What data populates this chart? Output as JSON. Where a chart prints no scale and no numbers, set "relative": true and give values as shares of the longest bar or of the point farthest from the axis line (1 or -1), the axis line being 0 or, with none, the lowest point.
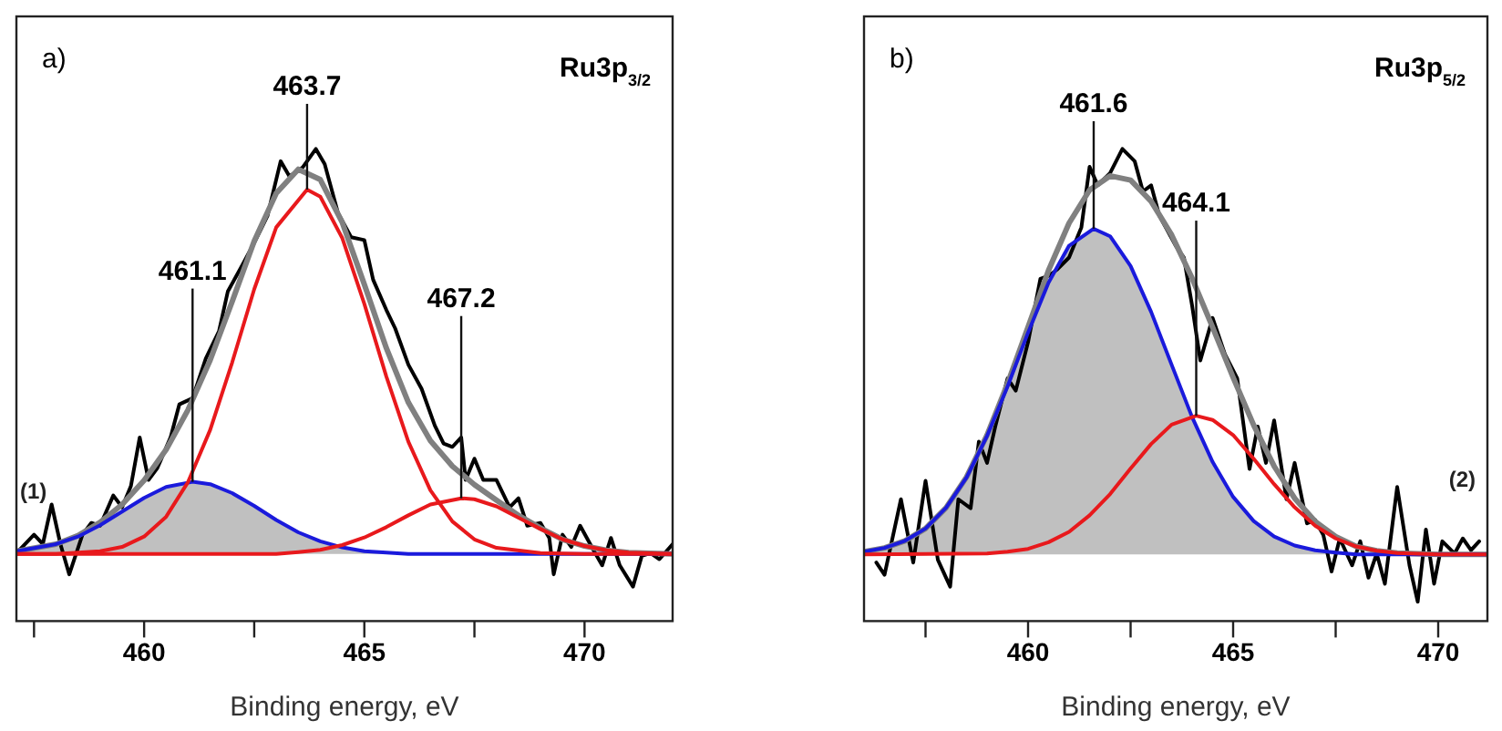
{
  "chart_data": [
    {
      "type": "line",
      "title": "Ru3p$_{3/2}$",
      "xlabel": "Binding energy, eV",
      "relative": true,
      "xlim": [
        457.1,
        472.0
      ],
      "xticks": [
        {
          "value": 457.5,
          "label": null
        },
        460,
        {
          "value": 462.5,
          "label": null
        },
        465,
        {
          "value": 467.5,
          "label": null
        },
        470
      ],
      "annotations": [
        "a)",
        {
          "text": "461.1",
          "x": 461.1,
          "y": 0.295
        },
        {
          "text": "463.7",
          "x": 463.7,
          "y": 0.914
        },
        {
          "text": "467.2",
          "x": 467.2,
          "y": 0.26
        }
      ],
      "series": [
        {
          "type": "area",
          "color": "#c0c0c0",
          "x": [
            457.1,
            458,
            458.5,
            459,
            459.5,
            460,
            460.5,
            461.1,
            461.5,
            462,
            462.5,
            463,
            463.5,
            464,
            464.5,
            465,
            466
          ],
          "values": [
            0.148,
            0.163,
            0.179,
            0.203,
            0.232,
            0.261,
            0.284,
            0.295,
            0.29,
            0.271,
            0.244,
            0.214,
            0.188,
            0.169,
            0.156,
            0.148,
            0.142
          ]
        },
        {
          "name": "(1)",
          "color": "#000000",
          "x": [
            457.1,
            457.5,
            457.7,
            457.9,
            458.1,
            458.3,
            458.6,
            458.8,
            459.0,
            459.3,
            459.5,
            459.7,
            459.9,
            460.1,
            460.3,
            460.6,
            460.8,
            461.1,
            461.4,
            461.7,
            461.9,
            462.2,
            462.5,
            462.8,
            463.1,
            463.3,
            463.6,
            463.9,
            464.1,
            464.4,
            464.7,
            465.0,
            465.2,
            465.5,
            465.7,
            466.0,
            466.3,
            466.6,
            466.8,
            467.0,
            467.2,
            467.3,
            467.5,
            467.7,
            468.0,
            468.3,
            468.5,
            468.7,
            469.0,
            469.2,
            469.3,
            469.5,
            469.7,
            469.9,
            470.2,
            470.4,
            470.6,
            470.8,
            471.1,
            471.3,
            471.5,
            471.7,
            472.0
          ],
          "values": [
            0.144,
            0.183,
            0.163,
            0.247,
            0.163,
            0.099,
            0.183,
            0.208,
            0.202,
            0.266,
            0.241,
            0.286,
            0.389,
            0.299,
            0.324,
            0.389,
            0.459,
            0.472,
            0.556,
            0.614,
            0.698,
            0.749,
            0.801,
            0.858,
            0.974,
            0.942,
            0.961,
            1.0,
            0.968,
            0.865,
            0.813,
            0.807,
            0.723,
            0.659,
            0.62,
            0.543,
            0.492,
            0.414,
            0.376,
            0.369,
            0.389,
            0.299,
            0.344,
            0.299,
            0.299,
            0.241,
            0.26,
            0.202,
            0.208,
            0.176,
            0.099,
            0.183,
            0.157,
            0.202,
            0.151,
            0.118,
            0.176,
            0.118,
            0.073,
            0.138,
            0.144,
            0.131,
            0.163
          ]
        },
        {
          "color": "#808080",
          "x": [
            457.1,
            458,
            458.5,
            459,
            459.5,
            460,
            460.5,
            461,
            461.5,
            462,
            462.5,
            463,
            463.5,
            464,
            464.5,
            465,
            465.5,
            466,
            466.5,
            467,
            467.5,
            468,
            468.5,
            469,
            469.5,
            470,
            470.5,
            471,
            472
          ],
          "values": [
            0.148,
            0.163,
            0.181,
            0.209,
            0.247,
            0.298,
            0.363,
            0.448,
            0.553,
            0.677,
            0.805,
            0.906,
            0.957,
            0.935,
            0.844,
            0.713,
            0.578,
            0.463,
            0.382,
            0.328,
            0.289,
            0.256,
            0.224,
            0.197,
            0.173,
            0.159,
            0.15,
            0.145,
            0.142
          ]
        },
        {
          "color": "#1a1adc",
          "x": [
            457.1,
            458,
            458.5,
            459,
            459.5,
            460,
            460.5,
            461.1,
            461.5,
            462,
            462.5,
            463,
            463.5,
            464,
            464.5,
            465,
            466,
            472
          ],
          "values": [
            0.148,
            0.163,
            0.179,
            0.203,
            0.232,
            0.261,
            0.284,
            0.295,
            0.29,
            0.271,
            0.244,
            0.214,
            0.188,
            0.169,
            0.156,
            0.148,
            0.142,
            0.142
          ]
        },
        {
          "color": "#e8191c",
          "x": [
            457.1,
            458,
            459,
            459.5,
            460,
            460.5,
            461,
            461.5,
            462,
            462.5,
            463,
            463.7,
            464,
            464.5,
            465,
            465.5,
            466,
            466.5,
            467,
            467.5,
            468,
            469,
            470,
            472
          ],
          "values": [
            0.142,
            0.142,
            0.148,
            0.157,
            0.179,
            0.221,
            0.295,
            0.405,
            0.548,
            0.703,
            0.834,
            0.914,
            0.899,
            0.811,
            0.672,
            0.518,
            0.38,
            0.277,
            0.211,
            0.173,
            0.155,
            0.144,
            0.142,
            0.142
          ]
        },
        {
          "color": "#e8191c",
          "x": [
            457.1,
            463,
            463.5,
            464,
            464.5,
            465,
            465.5,
            466,
            466.5,
            467.2,
            467.5,
            468,
            468.5,
            469,
            469.5,
            470,
            470.5,
            471,
            472
          ],
          "values": [
            0.142,
            0.142,
            0.146,
            0.151,
            0.161,
            0.177,
            0.199,
            0.224,
            0.247,
            0.26,
            0.258,
            0.243,
            0.219,
            0.195,
            0.173,
            0.159,
            0.15,
            0.145,
            0.142
          ]
        }
      ]
    },
    {
      "type": "line",
      "title": "Ru3p$_{5/2}$",
      "xlabel": "Binding energy, eV",
      "relative": true,
      "xlim": [
        456.0,
        471.2
      ],
      "xticks": [
        {
          "value": 457.5,
          "label": null
        },
        460,
        {
          "value": 462.5,
          "label": null
        },
        465,
        {
          "value": 467.5,
          "label": null
        },
        470
      ],
      "annotations": [
        "b)",
        {
          "text": "461.6",
          "x": 461.6,
          "y": 0.831
        },
        {
          "text": "464.1",
          "x": 464.1,
          "y": 0.435
        }
      ],
      "series": [
        {
          "type": "area",
          "color": "#c0c0c0",
          "x": [
            456,
            456.5,
            457,
            457.5,
            458,
            458.5,
            459,
            459.5,
            460,
            460.5,
            461,
            461.6,
            462,
            462.5,
            463,
            463.5,
            464,
            464.5,
            465,
            465.5,
            466,
            466.5,
            467,
            467.5,
            468
          ],
          "values": [
            0.147,
            0.155,
            0.17,
            0.196,
            0.24,
            0.304,
            0.392,
            0.497,
            0.611,
            0.717,
            0.795,
            0.831,
            0.815,
            0.752,
            0.655,
            0.543,
            0.432,
            0.337,
            0.263,
            0.212,
            0.179,
            0.16,
            0.15,
            0.145,
            0.141
          ]
        },
        {
          "name": "(2)",
          "color": "#000000",
          "x": [
            456.3,
            456.5,
            456.9,
            457.2,
            457.5,
            457.8,
            458.1,
            458.3,
            458.6,
            458.8,
            459.0,
            459.2,
            459.5,
            459.7,
            460.0,
            460.3,
            460.5,
            460.7,
            461.0,
            461.3,
            461.5,
            461.7,
            462.0,
            462.3,
            462.6,
            462.8,
            463.0,
            463.2,
            463.6,
            463.8,
            464.0,
            464.2,
            464.5,
            464.8,
            465.1,
            465.4,
            465.6,
            465.8,
            466.0,
            466.3,
            466.5,
            466.8,
            467.0,
            467.2,
            467.4,
            467.6,
            467.9,
            468.1,
            468.3,
            468.5,
            468.7,
            469.0,
            469.3,
            469.5,
            469.7,
            469.9,
            470.1,
            470.4,
            470.6,
            470.8,
            471.0
          ],
          "values": [
            0.124,
            0.098,
            0.258,
            0.124,
            0.297,
            0.13,
            0.073,
            0.258,
            0.239,
            0.38,
            0.335,
            0.412,
            0.514,
            0.488,
            0.591,
            0.725,
            0.731,
            0.744,
            0.77,
            0.834,
            0.962,
            0.923,
            0.949,
            1.0,
            0.974,
            0.91,
            0.923,
            0.859,
            0.795,
            0.77,
            0.668,
            0.552,
            0.642,
            0.565,
            0.514,
            0.322,
            0.412,
            0.335,
            0.425,
            0.258,
            0.335,
            0.207,
            0.214,
            0.182,
            0.105,
            0.175,
            0.118,
            0.169,
            0.092,
            0.143,
            0.079,
            0.284,
            0.118,
            0.041,
            0.194,
            0.079,
            0.169,
            0.143,
            0.175,
            0.15,
            0.169
          ]
        },
        {
          "color": "#808080",
          "x": [
            456,
            456.5,
            457,
            457.5,
            458,
            458.5,
            459,
            459.5,
            460,
            460.5,
            461,
            461.5,
            462,
            462.5,
            463,
            463.5,
            464,
            464.5,
            465,
            465.5,
            466,
            466.5,
            467,
            467.5,
            468,
            468.5,
            469,
            470,
            471.2
          ],
          "values": [
            0.147,
            0.155,
            0.17,
            0.196,
            0.24,
            0.305,
            0.394,
            0.503,
            0.623,
            0.743,
            0.843,
            0.913,
            0.943,
            0.934,
            0.889,
            0.818,
            0.726,
            0.622,
            0.516,
            0.415,
            0.328,
            0.26,
            0.211,
            0.179,
            0.158,
            0.149,
            0.144,
            0.141,
            0.141
          ]
        },
        {
          "color": "#1a1adc",
          "x": [
            456,
            456.5,
            457,
            457.5,
            458,
            458.5,
            459,
            459.5,
            460,
            460.5,
            461,
            461.6,
            462,
            462.5,
            463,
            463.5,
            464,
            464.5,
            465,
            465.5,
            466,
            466.5,
            467,
            467.5,
            468,
            471.2
          ],
          "values": [
            0.147,
            0.155,
            0.17,
            0.196,
            0.24,
            0.304,
            0.392,
            0.497,
            0.611,
            0.717,
            0.795,
            0.831,
            0.815,
            0.752,
            0.655,
            0.543,
            0.432,
            0.337,
            0.263,
            0.212,
            0.179,
            0.16,
            0.15,
            0.145,
            0.141,
            0.141
          ]
        },
        {
          "color": "#e8191c",
          "x": [
            456,
            459,
            459.5,
            460,
            460.5,
            461,
            461.5,
            462,
            462.5,
            463,
            463.5,
            464.1,
            464.5,
            465,
            465.5,
            466,
            466.5,
            467,
            467.5,
            468,
            468.5,
            469,
            470,
            471.2
          ],
          "values": [
            0.141,
            0.143,
            0.147,
            0.153,
            0.167,
            0.189,
            0.224,
            0.269,
            0.323,
            0.375,
            0.416,
            0.435,
            0.426,
            0.394,
            0.344,
            0.29,
            0.241,
            0.202,
            0.175,
            0.158,
            0.149,
            0.144,
            0.141,
            0.141
          ]
        }
      ]
    }
  ]
}
